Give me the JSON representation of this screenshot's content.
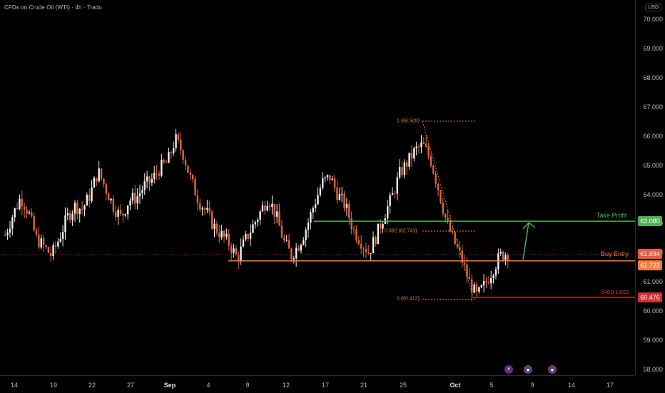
{
  "header": {
    "title": "CFDs on Crude Oil (WTI) · 4h · Tradu"
  },
  "price_axis": {
    "currency": "USD",
    "ticks": [
      "70.000",
      "69.000",
      "68.000",
      "67.000",
      "66.000",
      "65.000",
      "64.000",
      "63.000",
      "62.000",
      "61.000",
      "60.000",
      "59.000",
      "58.000"
    ]
  },
  "time_axis": {
    "labels": [
      "14",
      "19",
      "22",
      "27",
      "Sep",
      "4",
      "9",
      "12",
      "17",
      "21",
      "25",
      "Oct",
      "5",
      "9",
      "14",
      "17"
    ]
  },
  "annotations": {
    "take_profit": {
      "label": "Take Profit",
      "value": "63.080",
      "color": "#4caf50"
    },
    "buy_entry": {
      "label": "Buy Entry",
      "value": "61.722",
      "color": "#f57c3b"
    },
    "current_price": {
      "value": "61.934",
      "color": "#e65a3a"
    },
    "stop_loss": {
      "label": "Stop Loss",
      "value": "60.476",
      "color": "#d32f2f"
    },
    "fib": {
      "level_1": "1 (66.509)",
      "level_0382": "0.382 (62.741)",
      "level_0": "0 (60.412)"
    }
  },
  "event_icons": [
    "lightning-event-icon",
    "us-flag-event-icon",
    "us-flag-event-icon"
  ],
  "chart_data": {
    "type": "candlestick",
    "title": "CFDs on Crude Oil (WTI) · 4h · Tradu",
    "ylabel": "USD",
    "ylim": [
      57.6,
      70.4
    ],
    "horizontal_lines": [
      {
        "name": "Take Profit",
        "value": 63.08
      },
      {
        "name": "Buy Entry",
        "value": 61.722
      },
      {
        "name": "Stop Loss",
        "value": 60.476
      }
    ],
    "fibonacci": [
      {
        "level": 1,
        "price": 66.509
      },
      {
        "level": 0.382,
        "price": 62.741
      },
      {
        "level": 0,
        "price": 60.412
      }
    ],
    "close_path": [
      62.6,
      63.3,
      63.9,
      63.4,
      62.5,
      62.2,
      61.9,
      62.5,
      63.2,
      63.6,
      63.5,
      64.0,
      64.8,
      64.2,
      63.6,
      63.2,
      63.8,
      63.9,
      64.3,
      64.5,
      64.9,
      65.1,
      65.9,
      65.4,
      64.5,
      63.8,
      63.4,
      62.9,
      62.6,
      62.3,
      61.8,
      62.4,
      62.9,
      63.4,
      63.9,
      63.3,
      62.4,
      61.9,
      62.3,
      62.9,
      63.7,
      64.4,
      64.6,
      64.0,
      63.6,
      62.8,
      62.4,
      62.0,
      62.6,
      63.3,
      63.9,
      64.7,
      65.1,
      65.5,
      65.7,
      65.2,
      64.2,
      63.1,
      62.4,
      61.8,
      61.0,
      60.5,
      60.9,
      61.4,
      61.9,
      62.0
    ]
  }
}
